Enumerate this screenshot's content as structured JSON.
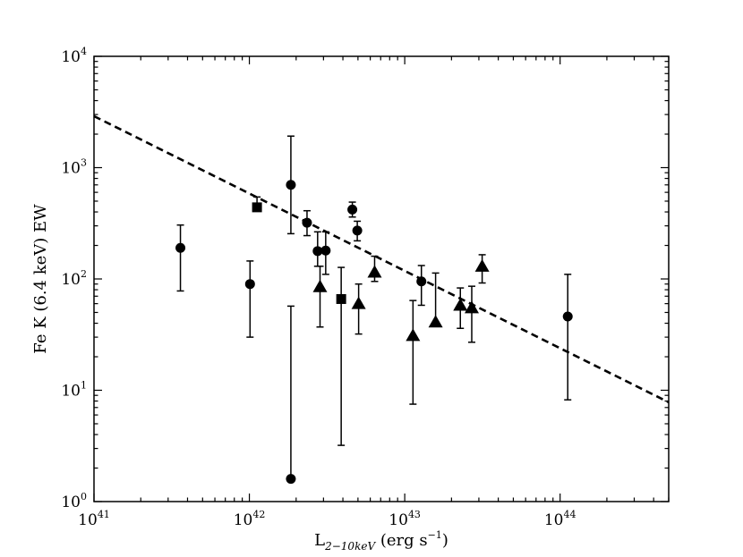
{
  "chart_data": {
    "type": "scatter",
    "xlabel": {
      "main": "L",
      "subscript": "2−10keV",
      "unit": " (erg s",
      "unit_exp": "−1",
      "unit_close": ")"
    },
    "ylabel": "Fe K (6.4 keV) EW",
    "xscale": "log",
    "yscale": "log",
    "xlim": [
      1e+41,
      5e+44
    ],
    "ylim": [
      1,
      10000
    ],
    "x_ticks": [
      {
        "value": 1e+41,
        "base": "10",
        "exp": "41"
      },
      {
        "value": 1e+42,
        "base": "10",
        "exp": "42"
      },
      {
        "value": 1e+43,
        "base": "10",
        "exp": "43"
      },
      {
        "value": 1e+44,
        "base": "10",
        "exp": "44"
      }
    ],
    "y_ticks": [
      {
        "value": 1,
        "base": "10",
        "exp": "0"
      },
      {
        "value": 10,
        "base": "10",
        "exp": "1"
      },
      {
        "value": 100,
        "base": "10",
        "exp": "2"
      },
      {
        "value": 1000,
        "base": "10",
        "exp": "3"
      },
      {
        "value": 10000,
        "base": "10",
        "exp": "4"
      }
    ],
    "series": [
      {
        "marker": "circle",
        "points": [
          {
            "x": 3.6e+41,
            "y": 190,
            "ylo": 78,
            "yhi": 305
          },
          {
            "x": 1.01e+42,
            "y": 90,
            "ylo": 30,
            "yhi": 145
          },
          {
            "x": 1.85e+42,
            "y": 700,
            "ylo": 255,
            "yhi": 1920
          },
          {
            "x": 1.85e+42,
            "y": 1.6,
            "ylo": 1.6,
            "yhi": 57
          },
          {
            "x": 2.35e+42,
            "y": 320,
            "ylo": 245,
            "yhi": 410
          },
          {
            "x": 2.75e+42,
            "y": 178,
            "ylo": 130,
            "yhi": 265
          },
          {
            "x": 3.1e+42,
            "y": 180,
            "ylo": 110,
            "yhi": 265
          },
          {
            "x": 4.6e+42,
            "y": 420,
            "ylo": 360,
            "yhi": 490
          },
          {
            "x": 4.95e+42,
            "y": 272,
            "ylo": 220,
            "yhi": 330
          },
          {
            "x": 1.28e+43,
            "y": 95,
            "ylo": 58,
            "yhi": 132
          },
          {
            "x": 1.12e+44,
            "y": 46,
            "ylo": 8.2,
            "yhi": 110
          }
        ]
      },
      {
        "marker": "square",
        "points": [
          {
            "x": 1.12e+42,
            "y": 440,
            "ylo": 440,
            "yhi": 545
          },
          {
            "x": 3.9e+42,
            "y": 66,
            "ylo": 3.2,
            "yhi": 127
          }
        ]
      },
      {
        "marker": "triangle",
        "points": [
          {
            "x": 2.85e+42,
            "y": 85,
            "ylo": 37,
            "yhi": 130
          },
          {
            "x": 5.05e+42,
            "y": 60,
            "ylo": 32,
            "yhi": 90
          },
          {
            "x": 6.4e+42,
            "y": 115,
            "ylo": 95,
            "yhi": 160
          },
          {
            "x": 1.13e+43,
            "y": 31,
            "ylo": 7.5,
            "yhi": 64
          },
          {
            "x": 1.58e+43,
            "y": 41,
            "ylo": 38,
            "yhi": 113
          },
          {
            "x": 2.28e+43,
            "y": 58,
            "ylo": 36,
            "yhi": 83
          },
          {
            "x": 2.7e+43,
            "y": 55,
            "ylo": 27,
            "yhi": 86
          },
          {
            "x": 3.15e+43,
            "y": 130,
            "ylo": 92,
            "yhi": 165
          }
        ]
      }
    ],
    "fit_line": {
      "style": "dashed",
      "points": [
        {
          "x": 1e+41,
          "y": 2900
        },
        {
          "x": 5e+44,
          "y": 7.8
        }
      ]
    },
    "grid": false,
    "legend": "none"
  }
}
